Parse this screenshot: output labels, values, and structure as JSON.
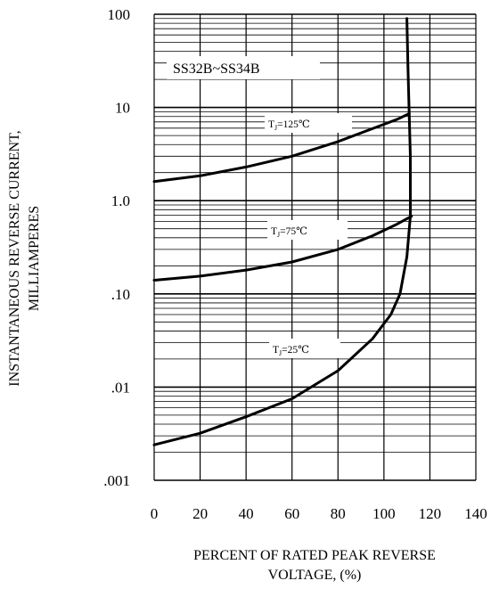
{
  "chart_data": {
    "type": "line",
    "title": "",
    "xlabel_lines": [
      "PERCENT OF RATED PEAK REVERSE",
      "VOLTAGE, (%)"
    ],
    "ylabel_lines": [
      "INSTANTANEOUS REVERSE CURRENT,",
      "MILLIAMPERES"
    ],
    "xlim": [
      0,
      140
    ],
    "ylim": [
      0.001,
      100
    ],
    "yscale": "log",
    "grid": true,
    "x_ticks": [
      0,
      20,
      40,
      60,
      80,
      100,
      120,
      140
    ],
    "x_tick_labels": [
      "0",
      "20",
      "40",
      "60",
      "80",
      "100",
      "120",
      "140"
    ],
    "y_ticks": [
      0.001,
      0.01,
      0.1,
      1,
      10,
      100
    ],
    "y_tick_labels": [
      ".001",
      ".01",
      ".10",
      "1.0",
      "10",
      "100"
    ],
    "part_label": "SS32B~SS34B",
    "series": [
      {
        "name": "TJ=125℃",
        "label_main": "T",
        "label_sub": "J",
        "label_rest": "=125℃",
        "points": [
          [
            0,
            1.6
          ],
          [
            20,
            1.85
          ],
          [
            40,
            2.3
          ],
          [
            60,
            3.0
          ],
          [
            80,
            4.3
          ],
          [
            100,
            6.6
          ],
          [
            106,
            7.5
          ],
          [
            111,
            8.6
          ]
        ]
      },
      {
        "name": "TJ=75℃",
        "label_main": "T",
        "label_sub": "J",
        "label_rest": "=75℃",
        "points": [
          [
            0,
            0.14
          ],
          [
            20,
            0.155
          ],
          [
            40,
            0.18
          ],
          [
            60,
            0.22
          ],
          [
            80,
            0.3
          ],
          [
            95,
            0.42
          ],
          [
            105,
            0.55
          ],
          [
            112,
            0.68
          ]
        ]
      },
      {
        "name": "TJ=25℃",
        "label_main": "T",
        "label_sub": "J",
        "label_rest": "=25℃",
        "points": [
          [
            0,
            0.0024
          ],
          [
            20,
            0.0032
          ],
          [
            40,
            0.0048
          ],
          [
            60,
            0.0075
          ],
          [
            80,
            0.015
          ],
          [
            95,
            0.033
          ],
          [
            103,
            0.06
          ],
          [
            107,
            0.1
          ],
          [
            110,
            0.25
          ],
          [
            111.5,
            0.68
          ],
          [
            111.5,
            3
          ],
          [
            111,
            8.6
          ],
          [
            110.5,
            25
          ],
          [
            110,
            90
          ]
        ]
      }
    ]
  }
}
